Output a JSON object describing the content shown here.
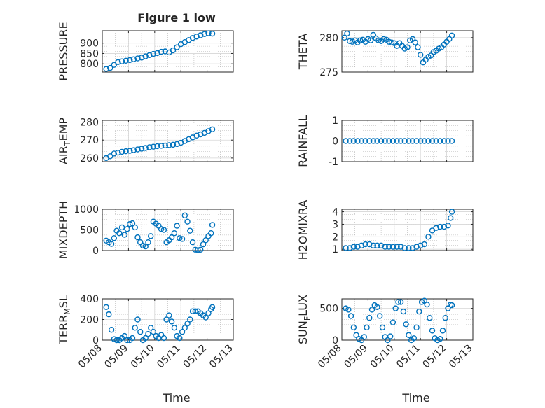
{
  "figure": {
    "title": "Figure 1 low",
    "xlabel": "Time",
    "marker_color": "#0072BD",
    "grid_color": "#b0b0b0",
    "time_ticks": [
      "05/08",
      "05/09",
      "05/10",
      "05/11",
      "05/12",
      "05/13"
    ]
  },
  "chart_data": [
    {
      "type": "scatter",
      "ylabel": "PRESSURE",
      "title": "Figure 1 low",
      "x_range": [
        "05/08",
        "05/13"
      ],
      "ylim": [
        760,
        960
      ],
      "yticks": [
        "800",
        "850",
        "900"
      ],
      "ytick_values": [
        800,
        850,
        900
      ],
      "grid": true,
      "x": [
        8.15,
        8.3,
        8.45,
        8.6,
        8.75,
        8.9,
        9.05,
        9.2,
        9.35,
        9.5,
        9.65,
        9.8,
        9.95,
        10.1,
        10.25,
        10.4,
        10.55,
        10.7,
        10.85,
        11.0,
        11.15,
        11.3,
        11.45,
        11.6,
        11.75,
        11.9,
        12.05,
        12.2
      ],
      "y": [
        775,
        780,
        795,
        808,
        812,
        815,
        818,
        822,
        826,
        830,
        836,
        842,
        848,
        852,
        858,
        860,
        855,
        865,
        880,
        895,
        905,
        915,
        925,
        932,
        938,
        944,
        948,
        946
      ]
    },
    {
      "type": "scatter",
      "ylabel": "THETA",
      "x_range": [
        "05/08",
        "05/13"
      ],
      "ylim": [
        275,
        281
      ],
      "yticks": [
        "275",
        "280"
      ],
      "ytick_values": [
        275,
        280
      ],
      "grid": true,
      "x": [
        8.1,
        8.2,
        8.3,
        8.4,
        8.5,
        8.6,
        8.7,
        8.8,
        8.9,
        9.0,
        9.1,
        9.2,
        9.3,
        9.4,
        9.5,
        9.6,
        9.7,
        9.8,
        9.9,
        10.0,
        10.1,
        10.2,
        10.3,
        10.4,
        10.5,
        10.6,
        10.7,
        10.8,
        10.9,
        11.0,
        11.1,
        11.2,
        11.3,
        11.4,
        11.5,
        11.6,
        11.7,
        11.8,
        11.9,
        12.0,
        12.1,
        12.2
      ],
      "y": [
        280,
        280.6,
        279.5,
        279.4,
        279.6,
        279.3,
        279.6,
        279.7,
        279.4,
        279.8,
        279.6,
        280.4,
        279.9,
        279.6,
        279.5,
        279.8,
        279.7,
        279.4,
        279.3,
        279.2,
        278.8,
        279.2,
        278.8,
        278.4,
        278.6,
        279.6,
        279.8,
        279.3,
        278.6,
        277.5,
        276.4,
        276.8,
        277.2,
        277.4,
        277.9,
        278.1,
        278.4,
        278.6,
        279.0,
        279.4,
        279.8,
        280.3
      ]
    },
    {
      "type": "scatter",
      "ylabel": "AIR_TEMP",
      "x_range": [
        "05/08",
        "05/13"
      ],
      "ylim": [
        258,
        281
      ],
      "yticks": [
        "260",
        "270",
        "280"
      ],
      "ytick_values": [
        260,
        270,
        280
      ],
      "grid": true,
      "x": [
        8.15,
        8.3,
        8.45,
        8.6,
        8.75,
        8.9,
        9.05,
        9.2,
        9.35,
        9.5,
        9.65,
        9.8,
        9.95,
        10.1,
        10.25,
        10.4,
        10.55,
        10.7,
        10.85,
        11.0,
        11.15,
        11.3,
        11.45,
        11.6,
        11.75,
        11.9,
        12.05,
        12.2
      ],
      "y": [
        260,
        261,
        262.5,
        263,
        263.5,
        263.8,
        264,
        264.4,
        264.8,
        265.2,
        265.6,
        266,
        266.3,
        266.6,
        266.8,
        267,
        267.2,
        267.4,
        267.8,
        268.5,
        269.5,
        270.5,
        271.5,
        272.5,
        273.2,
        274,
        275,
        276
      ]
    },
    {
      "type": "scatter",
      "ylabel": "RAINFALL",
      "x_range": [
        "05/08",
        "05/13"
      ],
      "ylim": [
        -1,
        1
      ],
      "yticks": [
        "-1",
        "0",
        "1"
      ],
      "ytick_values": [
        -1,
        0,
        1
      ],
      "grid": true,
      "x": [
        8.15,
        8.3,
        8.45,
        8.6,
        8.75,
        8.9,
        9.05,
        9.2,
        9.35,
        9.5,
        9.65,
        9.8,
        9.95,
        10.1,
        10.25,
        10.4,
        10.55,
        10.7,
        10.85,
        11.0,
        11.15,
        11.3,
        11.45,
        11.6,
        11.75,
        11.9,
        12.05,
        12.2
      ],
      "y": [
        0,
        0,
        0,
        0,
        0,
        0,
        0,
        0,
        0,
        0,
        0,
        0,
        0,
        0,
        0,
        0,
        0,
        0,
        0,
        0,
        0,
        0,
        0,
        0,
        0,
        0,
        0,
        0
      ]
    },
    {
      "type": "scatter",
      "ylabel": "MIXDEPTH",
      "x_range": [
        "05/08",
        "05/13"
      ],
      "ylim": [
        0,
        1000
      ],
      "yticks": [
        "0",
        "500",
        "1000"
      ],
      "ytick_values": [
        0,
        500,
        1000
      ],
      "grid": true,
      "x": [
        8.15,
        8.25,
        8.35,
        8.45,
        8.55,
        8.65,
        8.75,
        8.85,
        8.95,
        9.05,
        9.15,
        9.25,
        9.35,
        9.45,
        9.55,
        9.65,
        9.75,
        9.85,
        9.95,
        10.05,
        10.15,
        10.25,
        10.35,
        10.45,
        10.55,
        10.65,
        10.75,
        10.85,
        10.95,
        11.05,
        11.15,
        11.25,
        11.35,
        11.45,
        11.55,
        11.65,
        11.75,
        11.85,
        11.95,
        12.05,
        12.15,
        12.2
      ],
      "y": [
        240,
        200,
        160,
        300,
        480,
        420,
        560,
        380,
        520,
        640,
        660,
        560,
        320,
        200,
        120,
        100,
        200,
        350,
        700,
        650,
        600,
        520,
        500,
        200,
        250,
        320,
        420,
        600,
        300,
        280,
        850,
        700,
        480,
        200,
        20,
        10,
        20,
        150,
        250,
        350,
        420,
        620
      ]
    },
    {
      "type": "scatter",
      "ylabel": "H2OMIXRA",
      "x_range": [
        "05/08",
        "05/13"
      ],
      "ylim": [
        0.9,
        4.2
      ],
      "yticks": [
        "1",
        "2",
        "3",
        "4"
      ],
      "ytick_values": [
        1,
        2,
        3,
        4
      ],
      "grid": true,
      "x": [
        8.15,
        8.3,
        8.45,
        8.6,
        8.75,
        8.9,
        9.05,
        9.2,
        9.35,
        9.5,
        9.65,
        9.8,
        9.95,
        10.1,
        10.25,
        10.4,
        10.55,
        10.7,
        10.85,
        11.0,
        11.15,
        11.3,
        11.45,
        11.6,
        11.75,
        11.9,
        12.05,
        12.15,
        12.2
      ],
      "y": [
        1.1,
        1.1,
        1.2,
        1.2,
        1.3,
        1.4,
        1.4,
        1.3,
        1.3,
        1.3,
        1.2,
        1.2,
        1.2,
        1.2,
        1.2,
        1.1,
        1.1,
        1.1,
        1.2,
        1.3,
        1.4,
        2.0,
        2.5,
        2.7,
        2.8,
        2.8,
        2.9,
        3.5,
        4.0
      ]
    },
    {
      "type": "scatter",
      "ylabel": "TERR_MSL",
      "x_range": [
        "05/08",
        "05/13"
      ],
      "ylim": [
        0,
        400
      ],
      "yticks": [
        "0",
        "200",
        "400"
      ],
      "ytick_values": [
        0,
        200,
        400
      ],
      "grid": true,
      "x": [
        8.15,
        8.25,
        8.35,
        8.45,
        8.55,
        8.65,
        8.75,
        8.85,
        8.95,
        9.05,
        9.15,
        9.25,
        9.35,
        9.45,
        9.55,
        9.65,
        9.75,
        9.85,
        9.95,
        10.05,
        10.15,
        10.25,
        10.35,
        10.45,
        10.55,
        10.65,
        10.75,
        10.85,
        10.95,
        11.05,
        11.15,
        11.25,
        11.35,
        11.45,
        11.55,
        11.65,
        11.75,
        11.85,
        11.95,
        12.05,
        12.15,
        12.2
      ],
      "y": [
        320,
        250,
        100,
        10,
        0,
        0,
        20,
        40,
        0,
        0,
        20,
        120,
        200,
        80,
        0,
        20,
        60,
        120,
        80,
        40,
        20,
        50,
        20,
        200,
        240,
        180,
        120,
        40,
        20,
        80,
        120,
        160,
        200,
        280,
        280,
        280,
        260,
        240,
        220,
        260,
        300,
        320
      ]
    },
    {
      "type": "scatter",
      "ylabel": "SUN_FLUX",
      "x_range": [
        "05/08",
        "05/13"
      ],
      "ylim": [
        0,
        650
      ],
      "yticks": [
        "0",
        "500"
      ],
      "ytick_values": [
        0,
        500
      ],
      "grid": true,
      "x": [
        8.15,
        8.25,
        8.35,
        8.45,
        8.55,
        8.65,
        8.75,
        8.85,
        8.95,
        9.05,
        9.15,
        9.25,
        9.35,
        9.45,
        9.55,
        9.65,
        9.75,
        9.85,
        9.95,
        10.05,
        10.15,
        10.25,
        10.35,
        10.45,
        10.55,
        10.65,
        10.75,
        10.85,
        10.95,
        11.05,
        11.15,
        11.25,
        11.35,
        11.45,
        11.55,
        11.65,
        11.75,
        11.85,
        11.95,
        12.05,
        12.15,
        12.2
      ],
      "y": [
        500,
        480,
        380,
        200,
        80,
        20,
        0,
        50,
        200,
        350,
        480,
        550,
        520,
        380,
        200,
        50,
        0,
        60,
        280,
        500,
        600,
        600,
        450,
        250,
        80,
        0,
        30,
        200,
        450,
        600,
        620,
        560,
        350,
        150,
        30,
        0,
        20,
        150,
        350,
        500,
        560,
        550
      ]
    }
  ]
}
